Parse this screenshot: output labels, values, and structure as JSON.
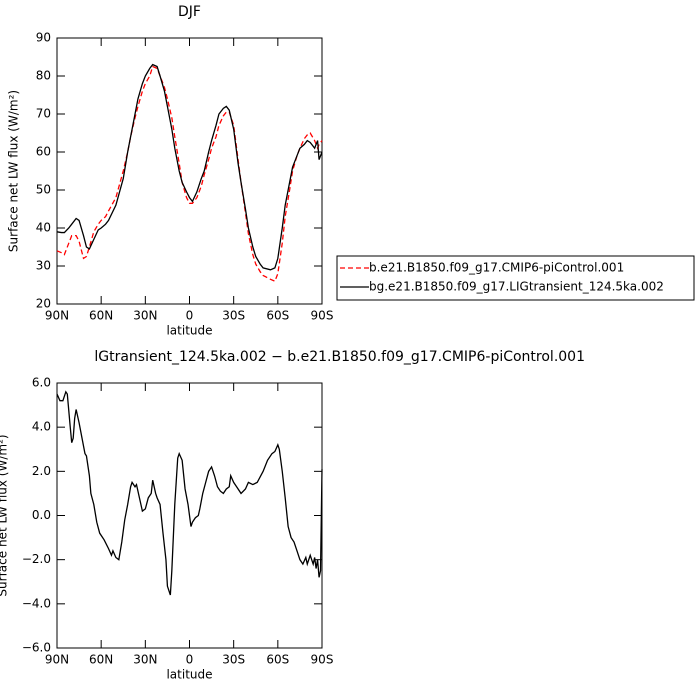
{
  "chart_data": [
    {
      "type": "line",
      "title": "DJF",
      "xlabel": "latitude",
      "ylabel": "Surface net LW flux (W/m²)",
      "x": [
        90,
        87,
        85,
        82,
        80,
        77,
        75,
        72,
        70,
        68,
        65,
        62,
        60,
        57,
        55,
        50,
        45,
        42,
        40,
        37,
        35,
        32,
        30,
        27,
        25,
        22,
        20,
        17,
        15,
        12,
        10,
        7,
        5,
        2,
        0,
        -2,
        -5,
        -8,
        -10,
        -13,
        -15,
        -18,
        -20,
        -23,
        -25,
        -27,
        -30,
        -33,
        -35,
        -38,
        -40,
        -43,
        -45,
        -48,
        -50,
        -55,
        -58,
        -60,
        -63,
        -65,
        -68,
        -70,
        -73,
        -75,
        -78,
        -80,
        -82,
        -85,
        -87,
        -88,
        -90
      ],
      "series": [
        {
          "name": "b.e21.B1850.f09_g17.CMIP6-piControl.001",
          "color": "#ff0000",
          "line_style": "dashed",
          "values": [
            34,
            33.5,
            33,
            36,
            38,
            38,
            36.5,
            32,
            32.5,
            35,
            39,
            41,
            42,
            43,
            44.5,
            48,
            55,
            60,
            64,
            69,
            72,
            76,
            78,
            80,
            82.5,
            82,
            80,
            77,
            74,
            69,
            64,
            57,
            52,
            48,
            46.5,
            46.5,
            48,
            51,
            54,
            58,
            61,
            64,
            67,
            69.5,
            70.5,
            70.5,
            67,
            58,
            52,
            44,
            38.5,
            33,
            30.5,
            28.5,
            27.5,
            26.5,
            26,
            28,
            36,
            43,
            50,
            55,
            59,
            61,
            63.5,
            64.5,
            65,
            63,
            61,
            62,
            63
          ]
        },
        {
          "name": "bg.e21.B1850.f09_g17.LIGtransient_124.5ka.002",
          "color": "#000000",
          "line_style": "solid",
          "values": [
            39,
            38.8,
            38.8,
            40,
            41,
            42.5,
            42,
            38,
            35,
            34.5,
            37,
            39.5,
            40,
            41,
            42,
            46,
            53,
            60,
            64,
            70,
            74,
            78,
            80,
            82,
            83,
            82.5,
            80,
            76,
            72,
            66,
            61,
            55,
            52,
            49.5,
            48,
            47,
            49.5,
            53,
            55,
            60,
            63,
            67,
            70,
            71.5,
            72,
            71,
            66,
            57,
            52,
            45,
            40,
            35,
            32.5,
            30.5,
            29.5,
            29,
            29.5,
            32,
            40,
            46,
            52,
            56,
            59,
            61,
            62,
            63,
            62.5,
            61,
            63,
            58,
            60
          ]
        }
      ],
      "xlim": [
        90,
        -90
      ],
      "xticks": [
        {
          "value": 90,
          "label": "90N"
        },
        {
          "value": 60,
          "label": "60N"
        },
        {
          "value": 30,
          "label": "30N"
        },
        0,
        {
          "value": -30,
          "label": "30S"
        },
        {
          "value": -60,
          "label": "60S"
        },
        {
          "value": -90,
          "label": "90S"
        }
      ],
      "ylim": [
        20,
        90
      ],
      "yticks": [
        20,
        30,
        40,
        50,
        60,
        70,
        80,
        90
      ],
      "legend": "right"
    },
    {
      "type": "line",
      "title": "lGtransient_124.5ka.002 − b.e21.B1850.f09_g17.CMIP6-piControl.001",
      "xlabel": "latitude",
      "ylabel": "Surface net LW flux (W/m²)",
      "x": [
        90,
        88,
        86,
        84,
        83,
        81,
        80,
        79,
        78,
        77,
        75,
        73,
        71,
        70,
        68,
        67,
        65,
        63,
        61,
        58,
        55,
        53,
        52,
        50,
        48,
        46,
        44,
        42,
        40,
        39,
        37,
        36,
        34,
        32,
        30,
        28,
        26,
        25,
        23,
        22,
        20,
        18,
        16,
        15,
        13,
        12,
        10,
        8,
        7,
        5,
        3,
        1,
        -1,
        -2,
        -4,
        -6,
        -7,
        -9,
        -11,
        -13,
        -15,
        -17,
        -19,
        -21,
        -23,
        -25,
        -27,
        -28,
        -30,
        -32,
        -35,
        -38,
        -40,
        -43,
        -46,
        -50,
        -53,
        -56,
        -58,
        -60,
        -61,
        -63,
        -65,
        -67,
        -69,
        -71,
        -73,
        -75,
        -77,
        -79,
        -80,
        -82,
        -84,
        -85,
        -86,
        -87,
        -88,
        -89,
        -90
      ],
      "values": [
        5.5,
        5.2,
        5.2,
        5.6,
        5.5,
        4,
        3.3,
        3.5,
        4.4,
        4.8,
        4.2,
        3.5,
        2.8,
        2.7,
        1.8,
        1,
        0.5,
        -0.3,
        -0.8,
        -1.1,
        -1.5,
        -1.8,
        -1.6,
        -1.9,
        -2,
        -1.2,
        -0.2,
        0.5,
        1.3,
        1.5,
        1.3,
        1.4,
        0.8,
        0.2,
        0.3,
        0.8,
        1,
        1.6,
        1,
        0.8,
        0.5,
        -0.8,
        -2,
        -3.2,
        -3.6,
        -2.5,
        0.5,
        2.6,
        2.8,
        2.5,
        1.2,
        0.5,
        -0.5,
        -0.3,
        -0.1,
        0,
        0.3,
        1,
        1.5,
        2,
        2.2,
        1.8,
        1.3,
        1.1,
        1,
        1.2,
        1.3,
        1.8,
        1.5,
        1.3,
        1,
        1.2,
        1.5,
        1.4,
        1.5,
        2,
        2.5,
        2.8,
        2.9,
        3.2,
        3,
        2,
        0.8,
        -0.5,
        -1,
        -1.2,
        -1.6,
        -2,
        -2.2,
        -1.9,
        -2.2,
        -1.8,
        -2.2,
        -1.9,
        -2.4,
        -2,
        -2.8,
        -2.5,
        2.1
      ],
      "color": "#000000",
      "xlim": [
        90,
        -90
      ],
      "xticks": [
        {
          "value": 90,
          "label": "90N"
        },
        {
          "value": 60,
          "label": "60N"
        },
        {
          "value": 30,
          "label": "30N"
        },
        0,
        {
          "value": -30,
          "label": "30S"
        },
        {
          "value": -60,
          "label": "60S"
        },
        {
          "value": -90,
          "label": "90S"
        }
      ],
      "ylim": [
        -6,
        6
      ],
      "yticks": [
        {
          "value": -6,
          "label": "−6.0"
        },
        {
          "value": -4,
          "label": "−4.0"
        },
        {
          "value": -2,
          "label": "−2.0"
        },
        {
          "value": 0,
          "label": "0.0"
        },
        {
          "value": 2,
          "label": "2.0"
        },
        {
          "value": 4,
          "label": "4.0"
        },
        {
          "value": 6,
          "label": "6.0"
        }
      ]
    }
  ]
}
